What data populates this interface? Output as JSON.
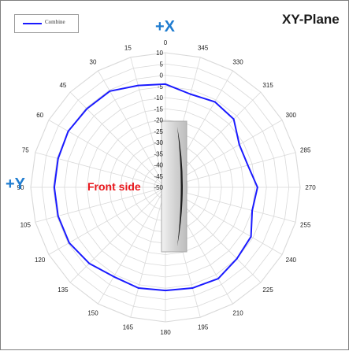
{
  "chart_data": {
    "type": "polar-line",
    "title": "XY-Plane",
    "axis_top": "+X",
    "axis_left": "+Y",
    "annotation": "Front side",
    "angle_ticks": [
      "0",
      "15",
      "30",
      "45",
      "60",
      "75",
      "90",
      "105",
      "120",
      "135",
      "150",
      "165",
      "180",
      "195",
      "210",
      "225",
      "240",
      "255",
      "270",
      "285",
      "300",
      "315",
      "330",
      "345"
    ],
    "angles_deg": [
      0,
      15,
      30,
      45,
      60,
      75,
      90,
      105,
      120,
      135,
      150,
      165,
      180,
      195,
      210,
      225,
      240,
      255,
      270,
      285,
      300,
      315,
      330,
      345
    ],
    "radial_ticks": [
      "10",
      "5",
      "0",
      "-5",
      "-10",
      "-15",
      "-20",
      "-25",
      "-30",
      "-35",
      "-40",
      "-45",
      "-50"
    ],
    "rlim": [
      -50,
      10
    ],
    "series": [
      {
        "name": "Combine",
        "color": "#1a1aff",
        "angles": [
          0,
          15,
          30,
          45,
          60,
          75,
          90,
          105,
          120,
          135,
          150,
          165,
          180,
          195,
          210,
          225,
          240,
          255,
          270,
          285,
          300,
          315,
          330,
          345
        ],
        "values": [
          -4,
          -3,
          -0.5,
          -0.5,
          0,
          -0.5,
          -0.5,
          -0.5,
          -0.5,
          -2,
          -4,
          -3.5,
          -4,
          -3.5,
          -3,
          -5,
          -6,
          -10,
          -9,
          -12,
          -12,
          -7,
          -6,
          -7
        ]
      }
    ]
  }
}
